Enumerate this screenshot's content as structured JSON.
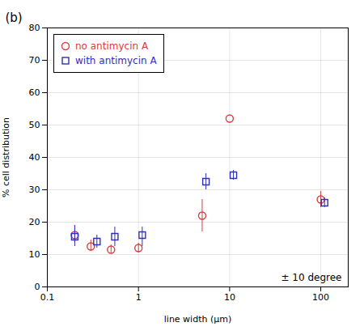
{
  "chart_data": {
    "type": "scatter",
    "title": "(b)",
    "xlabel": "line width (μm)",
    "ylabel": "% cell distribution",
    "annotation": "± 10 degree",
    "log": "x",
    "xlim": [
      0.1,
      200
    ],
    "ylim": [
      0,
      80
    ],
    "xticks": [
      0.1,
      1,
      10,
      100
    ],
    "yticks": [
      0,
      10,
      20,
      30,
      40,
      50,
      60,
      70,
      80
    ],
    "grid": true,
    "legend": "upper left",
    "series": [
      {
        "name": "no antimycin A",
        "color": "#d44040",
        "marker": "circle",
        "x": [
          0.2,
          0.3,
          0.5,
          1.0,
          5.0,
          10.0,
          100.0
        ],
        "values": [
          16.0,
          12.5,
          11.5,
          12.0,
          22.0,
          52.0,
          27.0
        ],
        "yerr_low": [
          2.5,
          1.5,
          1.0,
          1.5,
          5.0,
          0.0,
          2.5
        ],
        "yerr_high": [
          3.0,
          2.0,
          1.5,
          1.5,
          5.0,
          0.0,
          2.5
        ]
      },
      {
        "name": "with antimycin A",
        "color": "#3030bb",
        "marker": "square",
        "x": [
          0.2,
          0.35,
          0.55,
          1.1,
          5.5,
          11.0,
          110.0
        ],
        "values": [
          15.5,
          14.0,
          15.5,
          16.0,
          32.5,
          34.5,
          26.0
        ],
        "yerr_low": [
          3.0,
          2.0,
          3.0,
          3.5,
          2.5,
          1.5,
          1.5
        ],
        "yerr_high": [
          3.5,
          2.0,
          3.0,
          2.5,
          2.5,
          1.5,
          1.5
        ]
      }
    ]
  }
}
